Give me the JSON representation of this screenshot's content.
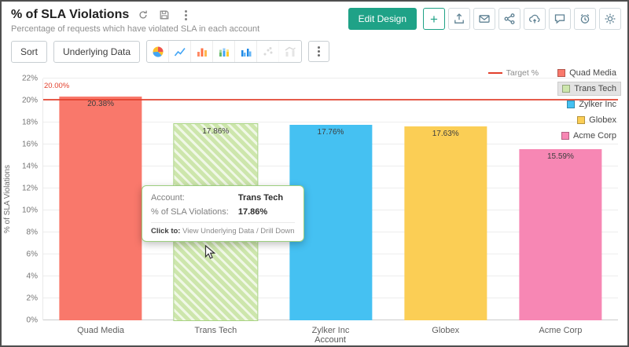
{
  "header": {
    "title": "% of SLA Violations",
    "subtitle": "Percentage of requests which have violated SLA in each account",
    "edit_design_label": "Edit Design",
    "add_label": "+",
    "title_icons": [
      "refresh-icon",
      "save-icon",
      "kebab-menu-icon"
    ],
    "action_icons": [
      "export-icon",
      "email-icon",
      "share-icon",
      "publish-icon",
      "comment-icon",
      "alert-icon",
      "settings-icon"
    ]
  },
  "toolbar": {
    "sort_label": "Sort",
    "underlying_data_label": "Underlying Data",
    "chart_type_icons": [
      "pie-chart-icon",
      "line-chart-icon",
      "bar-chart-icon",
      "stacked-bar-chart-icon",
      "grouped-bar-chart-icon",
      "scatter-chart-icon",
      "combo-chart-icon"
    ],
    "more_icon": "kebab-menu-icon"
  },
  "legend": {
    "target_label": "Target %",
    "highlighted_item": "Trans Tech"
  },
  "chart_data": {
    "type": "bar",
    "title": "% of SLA Violations",
    "categories": [
      "Quad Media",
      "Trans Tech",
      "Zylker Inc",
      "Globex",
      "Acme Corp"
    ],
    "values": [
      20.38,
      17.86,
      17.76,
      17.63,
      15.59
    ],
    "value_labels": [
      "20.38%",
      "17.86%",
      "17.76%",
      "17.63%",
      "15.59%"
    ],
    "bar_colors": [
      "#F9786B",
      "#CDE6AC",
      "#45C1F2",
      "#FBCE55",
      "#F787B4"
    ],
    "hovered_index": 1,
    "xlabel": "Account",
    "ylabel": "% of SLA Violations",
    "ylim": [
      0,
      22
    ],
    "ytick_step": 2,
    "ytick_labels": [
      "0%",
      "2%",
      "4%",
      "6%",
      "8%",
      "10%",
      "12%",
      "14%",
      "16%",
      "18%",
      "20%",
      "22%"
    ],
    "grid": true,
    "legend_position": "top-right",
    "target": {
      "value": 20,
      "label": "20.00%",
      "legend_label": "Target %",
      "color": "#E2402C"
    }
  },
  "tooltip": {
    "row1_label": "Account:",
    "row1_value": "Trans Tech",
    "row2_label": "% of SLA Violations:",
    "row2_value": "17.86%",
    "footer_label": "Click to:",
    "footer_value": "View Underlying Data / Drill Down"
  },
  "colors": {
    "accent": "#1FA287",
    "target": "#E2402C"
  }
}
